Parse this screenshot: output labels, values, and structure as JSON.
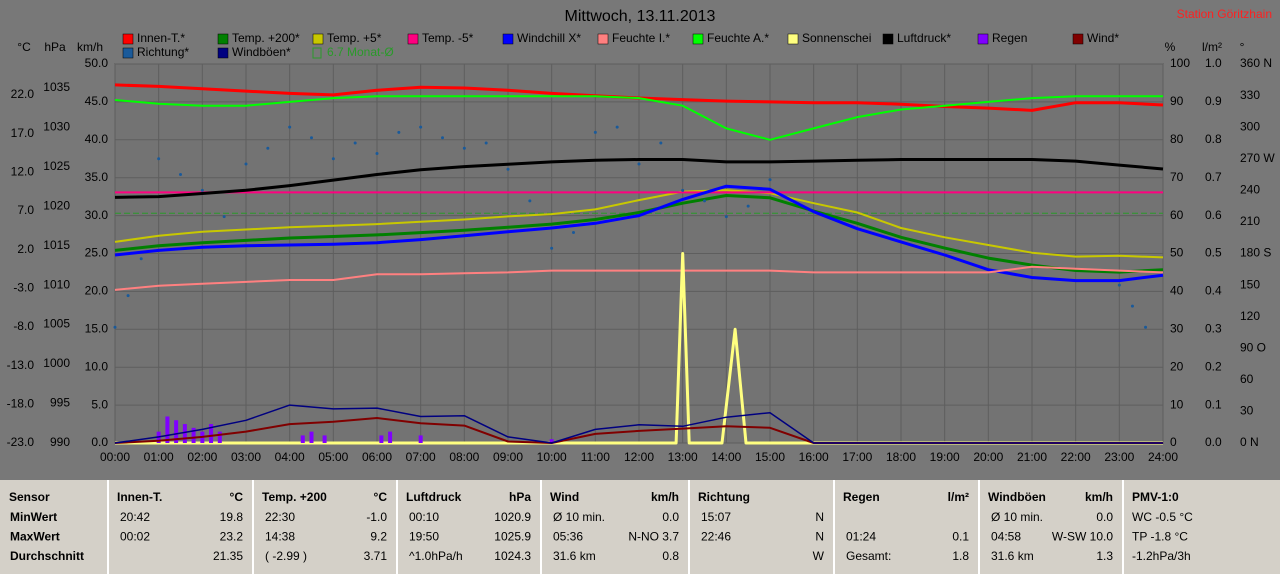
{
  "station": "Station Göritzhain",
  "chart_data": {
    "type": "line",
    "title": "Mittwoch, 13.11.2013",
    "grid": true,
    "grid_axis": 2,
    "xlim": [
      0,
      24
    ],
    "xticks": [
      {
        "value": 0,
        "label": "00:00"
      },
      {
        "value": 1,
        "label": "01:00"
      },
      {
        "value": 2,
        "label": "02:00"
      },
      {
        "value": 3,
        "label": "03:00"
      },
      {
        "value": 4,
        "label": "04:00"
      },
      {
        "value": 5,
        "label": "05:00"
      },
      {
        "value": 6,
        "label": "06:00"
      },
      {
        "value": 7,
        "label": "07:00"
      },
      {
        "value": 8,
        "label": "08:00"
      },
      {
        "value": 9,
        "label": "09:00"
      },
      {
        "value": 10,
        "label": "10:00"
      },
      {
        "value": 11,
        "label": "11:00"
      },
      {
        "value": 12,
        "label": "12:00"
      },
      {
        "value": 13,
        "label": "13:00"
      },
      {
        "value": 14,
        "label": "14:00"
      },
      {
        "value": 15,
        "label": "15:00"
      },
      {
        "value": 16,
        "label": "16:00"
      },
      {
        "value": 17,
        "label": "17:00"
      },
      {
        "value": 18,
        "label": "18:00"
      },
      {
        "value": 19,
        "label": "19:00"
      },
      {
        "value": 20,
        "label": "20:00"
      },
      {
        "value": 21,
        "label": "21:00"
      },
      {
        "value": 22,
        "label": "22:00"
      },
      {
        "value": 23,
        "label": "23:00"
      },
      {
        "value": 24,
        "label": "24:00"
      }
    ],
    "x": [
      0,
      1,
      2,
      3,
      4,
      5,
      6,
      7,
      8,
      9,
      10,
      11,
      12,
      13,
      14,
      15,
      16,
      17,
      18,
      19,
      20,
      21,
      22,
      23,
      24
    ],
    "y_axes": [
      {
        "label": "°C",
        "ylim": [
          -23,
          26
        ],
        "yticks": [
          {
            "value": 22,
            "label": "22.0"
          },
          {
            "value": 17,
            "label": "17.0"
          },
          {
            "value": 12,
            "label": "12.0"
          },
          {
            "value": 7,
            "label": "7.0"
          },
          {
            "value": 2,
            "label": "2.0"
          },
          {
            "value": -3,
            "label": "-3.0"
          },
          {
            "value": -8,
            "label": "-8.0"
          },
          {
            "value": -13,
            "label": "-13.0"
          },
          {
            "value": -18,
            "label": "-18.0"
          },
          {
            "value": -23,
            "label": "-23.0"
          }
        ]
      },
      {
        "label": "hPa",
        "ylim": [
          990,
          1038
        ],
        "yticks": [
          1035,
          1030,
          1025,
          1020,
          1015,
          1010,
          1005,
          1000,
          995,
          990
        ]
      },
      {
        "label": "km/h",
        "ylim": [
          0,
          50
        ],
        "yticks": [
          {
            "value": 50,
            "label": "50.0"
          },
          {
            "value": 45,
            "label": "45.0"
          },
          {
            "value": 40,
            "label": "40.0"
          },
          {
            "value": 35,
            "label": "35.0"
          },
          {
            "value": 30,
            "label": "30.0"
          },
          {
            "value": 25,
            "label": "25.0"
          },
          {
            "value": 20,
            "label": "20.0"
          },
          {
            "value": 15,
            "label": "15.0"
          },
          {
            "value": 10,
            "label": "10.0"
          },
          {
            "value": 5,
            "label": "5.0"
          },
          {
            "value": 0,
            "label": "0.0"
          }
        ]
      },
      {
        "label": "%",
        "ylim": [
          0,
          100
        ],
        "yticks": [
          100,
          90,
          80,
          70,
          60,
          50,
          40,
          30,
          20,
          10,
          0
        ]
      },
      {
        "label": "l/m²",
        "ylim": [
          0,
          1
        ],
        "yticks": [
          {
            "value": 1,
            "label": "1.0"
          },
          {
            "value": 0.9,
            "label": "0.9"
          },
          {
            "value": 0.8,
            "label": "0.8"
          },
          {
            "value": 0.7,
            "label": "0.7"
          },
          {
            "value": 0.6,
            "label": "0.6"
          },
          {
            "value": 0.5,
            "label": "0.5"
          },
          {
            "value": 0.4,
            "label": "0.4"
          },
          {
            "value": 0.3,
            "label": "0.3"
          },
          {
            "value": 0.2,
            "label": "0.2"
          },
          {
            "value": 0.1,
            "label": "0.1"
          },
          {
            "value": 0,
            "label": "0.0"
          }
        ]
      },
      {
        "label": "°",
        "ylim": [
          0,
          360
        ],
        "yticks": [
          {
            "value": 360,
            "label": "360 N"
          },
          330,
          300,
          {
            "value": 270,
            "label": "270 W"
          },
          240,
          210,
          {
            "value": 180,
            "label": "180 S"
          },
          150,
          120,
          {
            "value": 90,
            "label": "90 O"
          },
          60,
          30,
          {
            "value": 0,
            "label": "0 N"
          }
        ]
      }
    ],
    "series": [
      {
        "name": "Innen-T.*",
        "color": "#ff0000",
        "axis": 0,
        "values": [
          23.3,
          23.1,
          22.8,
          22.5,
          22.2,
          22.0,
          22.6,
          23.0,
          22.9,
          22.6,
          22.2,
          21.9,
          21.6,
          21.4,
          21.2,
          21.1,
          21.0,
          21.0,
          20.8,
          20.5,
          20.3,
          20.0,
          21.0,
          21.0,
          20.7
        ]
      },
      {
        "name": "Temp. +200*",
        "color": "#008000",
        "axis": 0,
        "values": [
          1.9,
          2.5,
          2.9,
          3.2,
          3.5,
          3.7,
          3.9,
          4.2,
          4.5,
          4.9,
          5.3,
          5.9,
          6.8,
          8.0,
          9.0,
          8.7,
          7.0,
          5.4,
          3.6,
          2.2,
          0.9,
          0.0,
          -0.7,
          -0.9,
          -0.6
        ]
      },
      {
        "name": "Temp. +5*",
        "color": "#c8c800",
        "axis": 0,
        "values": [
          3.0,
          3.8,
          4.3,
          4.6,
          4.9,
          5.1,
          5.3,
          5.6,
          5.9,
          6.3,
          6.6,
          7.2,
          8.4,
          9.5,
          9.7,
          9.3,
          8.0,
          6.8,
          4.8,
          3.6,
          2.6,
          1.6,
          1.1,
          1.2,
          1.0
        ]
      },
      {
        "name": "Temp. -5*",
        "color": "#ff0080",
        "axis": 0,
        "values": [
          9.4,
          9.4,
          9.4,
          9.4,
          9.4,
          9.4,
          9.4,
          9.4,
          9.4,
          9.4,
          9.4,
          9.4,
          9.4,
          9.4,
          9.4,
          9.4,
          9.4,
          9.4,
          9.4,
          9.4,
          9.4,
          9.4,
          9.4,
          9.4,
          9.4
        ]
      },
      {
        "name": "Windchill X*",
        "color": "#0000ff",
        "axis": 0,
        "values": [
          1.3,
          1.9,
          2.3,
          2.5,
          2.6,
          2.7,
          2.9,
          3.3,
          3.8,
          4.3,
          4.8,
          5.4,
          6.4,
          8.5,
          10.2,
          9.8,
          6.9,
          4.7,
          3.0,
          1.3,
          -0.6,
          -1.6,
          -2.0,
          -2.0,
          -1.3
        ]
      },
      {
        "name": "Feuchte I.*",
        "color": "#ff8080",
        "axis": 3,
        "values": [
          40.4,
          41.5,
          42,
          42.5,
          43,
          43,
          44.5,
          44.5,
          44.8,
          45,
          45.5,
          45.5,
          45.5,
          45.5,
          45.5,
          45.5,
          45,
          45,
          45,
          45,
          45,
          46.5,
          46,
          45.5,
          45
        ]
      },
      {
        "name": "Feuchte A.*",
        "color": "#00ff00",
        "axis": 3,
        "values": [
          90.5,
          89.5,
          89,
          89,
          90,
          91,
          91.5,
          91.5,
          91.5,
          91.5,
          91.5,
          91.5,
          91,
          89,
          83,
          80,
          83,
          86,
          88,
          89,
          90,
          91,
          91.5,
          91.5,
          91.5
        ]
      },
      {
        "name": "Sonnenschei",
        "color": "#ffff80",
        "axis": 3,
        "x": [
          0,
          12.85,
          13.0,
          13.15,
          13.9,
          14.2,
          14.45,
          24
        ],
        "values": [
          0,
          0,
          50,
          0,
          0,
          30,
          0,
          0
        ]
      },
      {
        "name": "Luftdruck*",
        "color": "#000000",
        "axis": 1,
        "values": [
          1021.1,
          1021.2,
          1021.6,
          1022.0,
          1022.6,
          1023.3,
          1024.0,
          1024.6,
          1025.0,
          1025.3,
          1025.6,
          1025.8,
          1025.9,
          1025.9,
          1025.6,
          1025.6,
          1025.7,
          1025.8,
          1025.9,
          1025.9,
          1025.9,
          1025.9,
          1025.7,
          1025.2,
          1024.7
        ]
      },
      {
        "name": "Regen",
        "color": "#8000ff",
        "axis": 4,
        "style": "bars",
        "x": [
          1.0,
          1.2,
          1.4,
          1.6,
          1.8,
          2.0,
          2.2,
          2.4,
          4.3,
          4.5,
          4.8,
          6.1,
          6.3,
          7.0,
          10.0
        ],
        "values": [
          0.03,
          0.07,
          0.06,
          0.05,
          0.04,
          0.03,
          0.05,
          0.03,
          0.02,
          0.03,
          0.02,
          0.02,
          0.03,
          0.02,
          0.01
        ]
      },
      {
        "name": "Wind*",
        "color": "#800000",
        "axis": 2,
        "values": [
          0,
          0.3,
          0.8,
          1.5,
          2.5,
          2.8,
          3.3,
          2.6,
          2.3,
          0.2,
          0,
          1.2,
          1.6,
          1.9,
          2.2,
          2.0,
          0,
          0,
          0,
          0,
          0,
          0,
          0,
          0,
          0
        ]
      },
      {
        "name": "Richtung*",
        "color": "#1a5a9a",
        "axis": 5,
        "style": "dots",
        "x": [
          0.0,
          0.3,
          0.6,
          1.0,
          1.5,
          2.0,
          2.5,
          3.0,
          3.5,
          4.0,
          4.5,
          5.0,
          5.5,
          6.0,
          6.5,
          7.0,
          7.5,
          8.0,
          8.5,
          9.0,
          9.5,
          10.0,
          10.5,
          11.0,
          11.5,
          12.0,
          12.5,
          13.0,
          13.5,
          14.0,
          14.5,
          15.0,
          23.0,
          23.3,
          23.6
        ],
        "values": [
          110,
          140,
          175,
          270,
          255,
          240,
          215,
          265,
          280,
          300,
          290,
          270,
          285,
          275,
          295,
          300,
          290,
          280,
          285,
          260,
          230,
          185,
          200,
          295,
          300,
          265,
          285,
          240,
          230,
          215,
          225,
          250,
          150,
          130,
          110
        ]
      },
      {
        "name": "Windböen*",
        "color": "#000080",
        "axis": 2,
        "values": [
          0,
          0.8,
          1.8,
          3.0,
          5.0,
          4.5,
          4.6,
          3.5,
          3.6,
          0.8,
          0,
          1.8,
          2.4,
          2.2,
          3.4,
          4.0,
          0,
          0,
          0,
          0,
          0,
          0,
          0,
          0,
          0
        ]
      }
    ],
    "reference_lines": [
      {
        "name": "6.7 Monat-Ø",
        "value": 6.7,
        "axis": 0,
        "color": "#2a9a2a"
      }
    ]
  },
  "table": {
    "columns": [
      {
        "header": "Sensor",
        "rows": [
          [
            "MinWert"
          ],
          [
            "MaxWert"
          ],
          [
            "Durchschnitt"
          ]
        ]
      },
      {
        "header": "Innen-T.",
        "unit": "°C",
        "rows": [
          [
            "20:42",
            "19.8"
          ],
          [
            "00:02",
            "23.2"
          ],
          [
            "21.35"
          ]
        ]
      },
      {
        "header": "Temp. +200",
        "unit": "°C",
        "rows": [
          [
            "22:30",
            "-1.0"
          ],
          [
            "14:38",
            "9.2"
          ],
          [
            "( -2.99 )",
            "3.71"
          ]
        ]
      },
      {
        "header": "Luftdruck",
        "unit": "hPa",
        "rows": [
          [
            "00:10",
            "1020.9"
          ],
          [
            "19:50",
            "1025.9"
          ],
          [
            "^1.0hPa/h",
            "1024.3"
          ]
        ]
      },
      {
        "header": "Wind",
        "unit": "km/h",
        "rows": [
          [
            "Ø 10 min.",
            "0.0"
          ],
          [
            "05:36",
            "N-NO 3.7"
          ],
          [
            "31.6 km",
            "0.8"
          ]
        ]
      },
      {
        "header": "Richtung",
        "rows": [
          [
            "15:07",
            "N"
          ],
          [
            "22:46",
            "N"
          ],
          [
            "W"
          ]
        ]
      },
      {
        "header": "Regen",
        "unit": "l/m²",
        "rows": [
          [],
          [
            "01:24",
            "0.1"
          ],
          [
            "Gesamt:",
            "1.8"
          ]
        ]
      },
      {
        "header": "Windböen",
        "unit": "km/h",
        "rows": [
          [
            "Ø 10 min.",
            "0.0"
          ],
          [
            "04:58",
            "W-SW 10.0"
          ],
          [
            "31.6 km",
            "1.3"
          ]
        ]
      },
      {
        "header": "PMV-1:0",
        "rows": [
          [
            "WC -0.5 °C"
          ],
          [
            "TP -1.8 °C"
          ],
          [
            "-1.2hPa/3h"
          ]
        ]
      }
    ]
  }
}
